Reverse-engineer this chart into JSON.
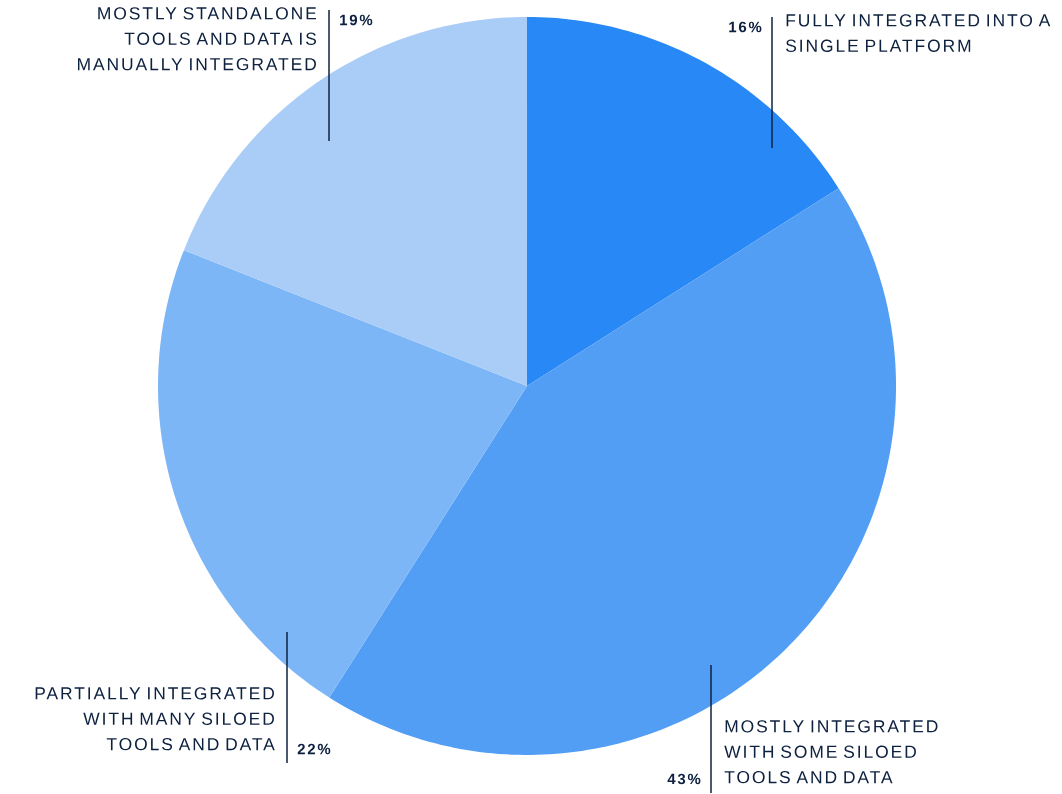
{
  "chart_data": {
    "type": "pie",
    "categories": [
      "FULLY INTEGRATED INTO A SINGLE PLATFORM",
      "MOSTLY INTEGRATED WITH SOME SILOED TOOLS AND DATA",
      "PARTIALLY INTEGRATED WITH MANY SILOED TOOLS AND DATA",
      "MOSTLY STANDALONE TOOLS AND DATA IS MANUALLY INTEGRATED"
    ],
    "values": [
      16,
      43,
      22,
      19
    ],
    "value_labels": [
      "16%",
      "43%",
      "22%",
      "19%"
    ],
    "colors": [
      "#2888f5",
      "#529ef5",
      "#7db6f6",
      "#aacdf8"
    ]
  }
}
